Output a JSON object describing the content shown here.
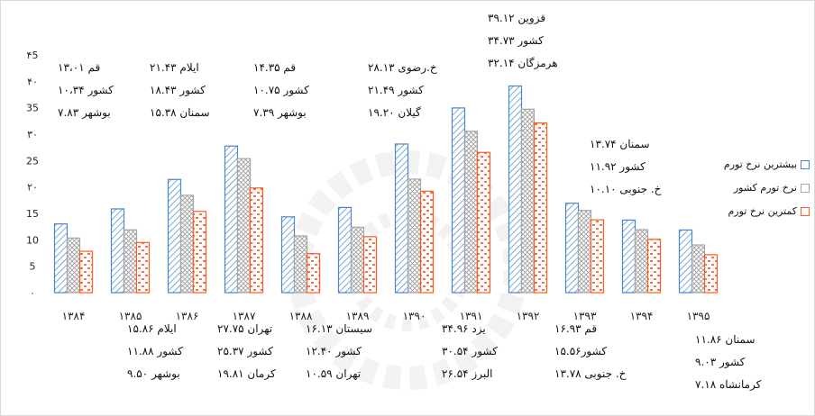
{
  "chart_data": {
    "type": "bar",
    "categories": [
      "۱۳۸۴",
      "۱۳۸۵",
      "۱۳۸۶",
      "۱۳۸۷",
      "۱۳۸۸",
      "۱۳۸۹",
      "۱۳۹۰",
      "۱۳۹۱",
      "۱۳۹۲",
      "۱۳۹۳",
      "۱۳۹۴",
      "۱۳۹۵"
    ],
    "series": [
      {
        "name": "بیشترین نرخ تورم",
        "color": "#4a86c8",
        "pattern": "hatch",
        "values": [
          13.01,
          15.86,
          21.43,
          27.75,
          14.35,
          16.13,
          28.13,
          34.96,
          39.12,
          16.93,
          13.74,
          11.86
        ]
      },
      {
        "name": "نرخ تورم کشور",
        "color": "#a6a6a6",
        "pattern": "cross",
        "values": [
          10.34,
          11.88,
          18.43,
          25.37,
          10.75,
          12.4,
          21.49,
          30.54,
          34.73,
          15.56,
          11.92,
          9.03
        ]
      },
      {
        "name": "کمترین نرخ تورم",
        "color": "#ff5a1f",
        "pattern": "dash",
        "values": [
          7.83,
          9.5,
          15.38,
          19.81,
          7.39,
          10.59,
          19.2,
          26.54,
          32.14,
          13.78,
          10.1,
          7.18
        ]
      }
    ],
    "yticks": [
      "۰",
      "5",
      "10",
      "15",
      "۲۰",
      "25",
      "۳۰",
      "35",
      "۴۰",
      "۴5"
    ],
    "ylim": [
      0,
      45
    ],
    "grid": false,
    "legend_position": "right",
    "annotations": [
      {
        "lines": [
          "قم ۱۳،۰۱",
          "کشور ۱۰،۳۴",
          "بوشهر ۷.۸۳"
        ]
      },
      {
        "lines": [
          "ایلام ۲۱.۴۳",
          "کشور ۱۸.۴۳",
          "سمنان ۱۵.۳۸"
        ]
      },
      {
        "lines": [
          "قم ۱۴.۳۵",
          "کشور ۱۰.۷۵",
          "بوشهر ۷.۳۹"
        ]
      },
      {
        "lines": [
          "خ.رضوی ۲۸.۱۳",
          "کشور ۲۱.۴۹",
          "گیلان ۱۹.۲۰"
        ]
      },
      {
        "lines": [
          "قزوین ۳۹.۱۲",
          "کشور ۳۴.۷۳",
          "هرمزگان ۳۲.۱۴"
        ]
      },
      {
        "lines": [
          "سمنان ۱۳.۷۴",
          "کشور ۱۱.۹۲",
          "خ. جنوبی ۱۰.۱۰"
        ]
      },
      {
        "lines": [
          "ایلام ۱۵.۸۶",
          "کشور ۱۱.۸۸",
          "بوشهر ۹.۵۰"
        ]
      },
      {
        "lines": [
          "تهران ۲۷.۷۵",
          "کشور ۲۵.۳۷",
          "کرمان ۱۹.۸۱"
        ]
      },
      {
        "lines": [
          "سیستان ۱۶.۱۳",
          "کشور ۱۲.۴۰",
          "تهران ۱۰.۵۹"
        ]
      },
      {
        "lines": [
          "یزد ۳۴.۹۶",
          "کشور ۳۰.۵۴",
          "البرز ۲۶.۵۴"
        ]
      },
      {
        "lines": [
          "قم ۱۶.۹۳",
          "کشور۱۵.۵۶",
          "خ. جنوبی ۱۳.۷۸"
        ]
      },
      {
        "lines": [
          "سمنان ۱۱.۸۶",
          "کشور ۹.۰۳",
          "کرمانشاه ۷.۱۸"
        ]
      }
    ]
  }
}
